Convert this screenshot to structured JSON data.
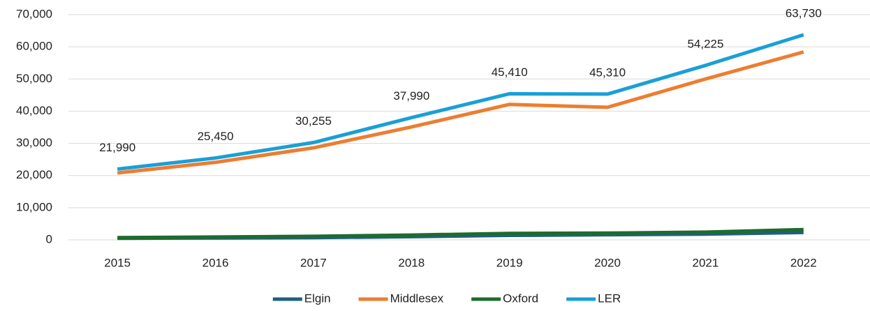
{
  "chart_data": {
    "type": "line",
    "categories": [
      "2015",
      "2016",
      "2017",
      "2018",
      "2019",
      "2020",
      "2021",
      "2022"
    ],
    "series": [
      {
        "name": "Elgin",
        "color": "#1f5f7f",
        "values": [
          500,
          600,
          700,
          1000,
          1400,
          1600,
          1800,
          2300
        ]
      },
      {
        "name": "Middlesex",
        "color": "#ed7d31",
        "values": [
          20800,
          24100,
          28600,
          35100,
          42100,
          41200,
          50000,
          58400
        ]
      },
      {
        "name": "Oxford",
        "color": "#1e6b2e",
        "values": [
          700,
          900,
          1100,
          1500,
          2000,
          2100,
          2400,
          3200
        ]
      },
      {
        "name": "LER",
        "color": "#1a9fd6",
        "values": [
          21990,
          25450,
          30255,
          37990,
          45410,
          45310,
          54225,
          63730
        ],
        "value_labels": [
          "21,990",
          "25,450",
          "30,255",
          "37,990",
          "45,410",
          "45,310",
          "54,225",
          "63,730"
        ]
      }
    ],
    "ylim": [
      0,
      70000
    ],
    "yticks": [
      0,
      {
        "value": 10000,
        "label": "10,000"
      },
      {
        "value": 20000,
        "label": "20,000"
      },
      {
        "value": 30000,
        "label": "30,000"
      },
      {
        "value": 40000,
        "label": "40,000"
      },
      {
        "value": 50000,
        "label": "50,000"
      },
      {
        "value": 60000,
        "label": "60,000"
      },
      {
        "value": 70000,
        "label": "70,000"
      }
    ],
    "grid": true,
    "legend": "bottom"
  }
}
